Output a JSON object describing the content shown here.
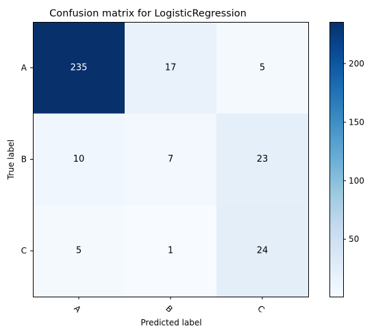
{
  "chart_data": {
    "type": "heatmap",
    "title": "Confusion matrix for LogisticRegression",
    "xlabel": "Predicted label",
    "ylabel": "True label",
    "x_categories": [
      "A",
      "B",
      "C"
    ],
    "y_categories": [
      "A",
      "B",
      "C"
    ],
    "values": [
      [
        235,
        17,
        5
      ],
      [
        10,
        7,
        23
      ],
      [
        5,
        1,
        24
      ]
    ],
    "colormap": "Blues",
    "color_range": [
      1,
      235
    ],
    "colorbar_ticks": [
      50,
      100,
      150,
      200
    ],
    "grid": false,
    "x_tick_rotation": 45
  },
  "colors": {
    "low": "#f7fbff",
    "high": "#08306b",
    "text_dark": "#000000",
    "text_light": "#ffffff"
  }
}
